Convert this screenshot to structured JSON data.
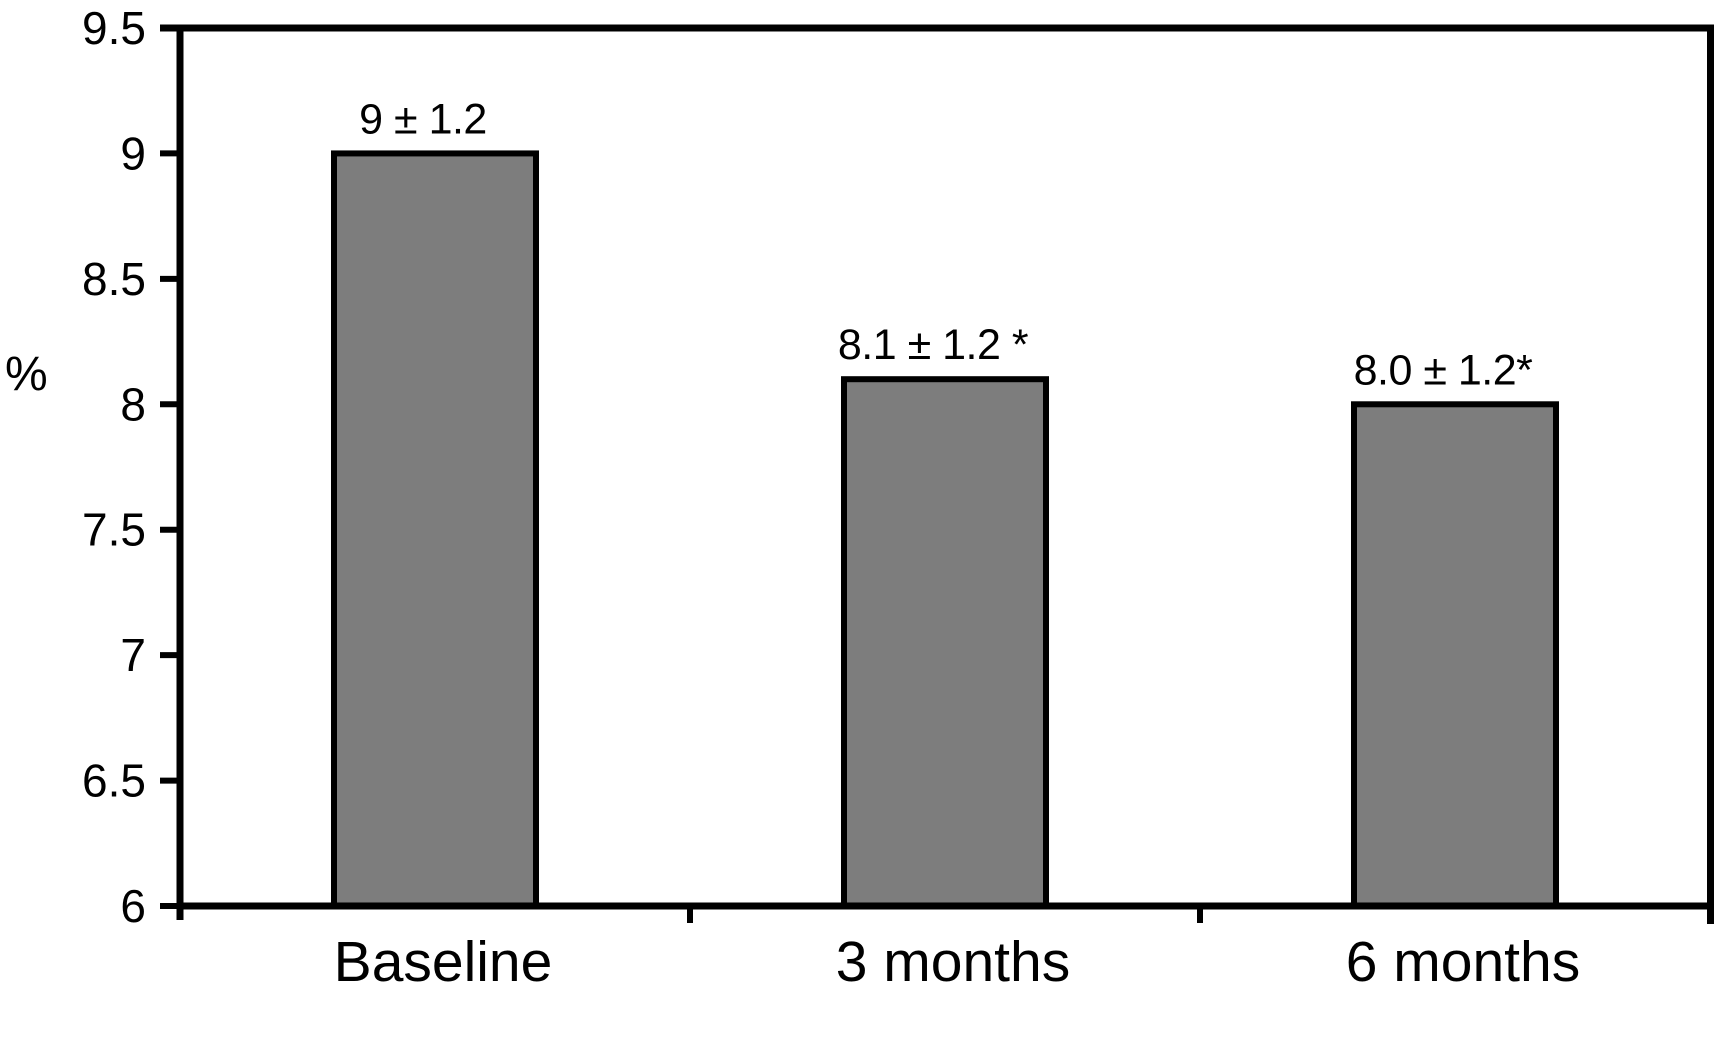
{
  "chart_data": {
    "type": "bar",
    "title": "",
    "xlabel": "",
    "ylabel": "%",
    "categories": [
      "Baseline",
      "3 months",
      "6 months"
    ],
    "values": [
      9,
      8.1,
      8.0
    ],
    "bar_labels": [
      "9 ± 1.2",
      "8.1 ± 1.2 *",
      "8.0 ± 1.2*"
    ],
    "error_value": 1.2,
    "ylim": [
      6,
      9.5
    ],
    "yticks": [
      6,
      6.5,
      7,
      7.5,
      8,
      8.5,
      9,
      9.5
    ],
    "ytick_labels": [
      "6",
      "6.5",
      "7",
      "7.5",
      "8",
      "8.5",
      "9",
      "9.5"
    ],
    "grid": false,
    "legend": false,
    "frame": "full-box",
    "colors": {
      "bar_fill": "#7d7d7d",
      "bar_border": "#000000",
      "axis": "#000000",
      "text": "#000000",
      "background": "#ffffff"
    }
  }
}
